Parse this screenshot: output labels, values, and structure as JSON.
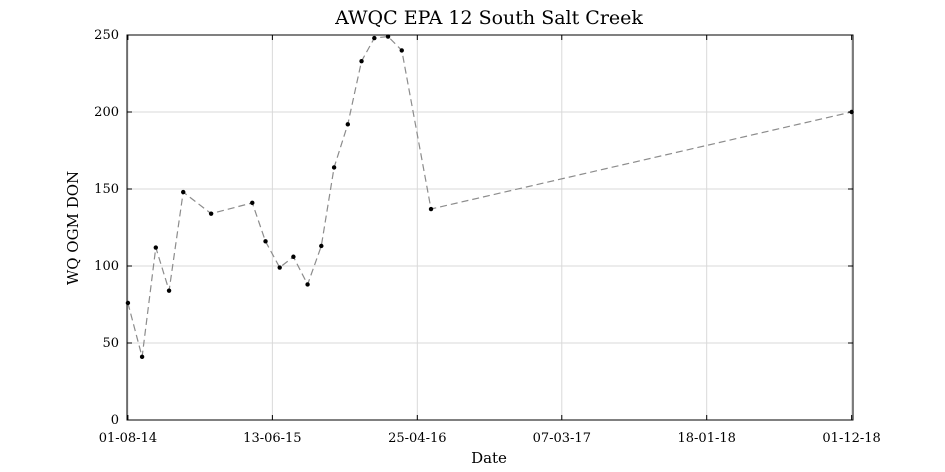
{
  "chart_data": {
    "type": "line",
    "title": "AWQC EPA 12 South Salt Creek",
    "xlabel": "Date",
    "ylabel": "WQ OGM DON",
    "x_axis_type": "date",
    "xlim": [
      "2014-07-30",
      "2018-12-04"
    ],
    "ylim": [
      0,
      250
    ],
    "xticks": [
      {
        "label": "01-08-14",
        "date": "2014-08-01"
      },
      {
        "label": "13-06-15",
        "date": "2015-06-13"
      },
      {
        "label": "25-04-16",
        "date": "2016-04-25"
      },
      {
        "label": "07-03-17",
        "date": "2017-03-07"
      },
      {
        "label": "18-01-18",
        "date": "2018-01-18"
      },
      {
        "label": "01-12-18",
        "date": "2018-12-01"
      }
    ],
    "yticks": [
      0,
      50,
      100,
      150,
      200,
      250
    ],
    "grid": true,
    "line_color": "#8c8c8c",
    "marker_color": "#000000",
    "series": [
      {
        "points": [
          {
            "x": "2014-08-01",
            "y": 76
          },
          {
            "x": "2014-09-01",
            "y": 41
          },
          {
            "x": "2014-10-01",
            "y": 112
          },
          {
            "x": "2014-10-30",
            "y": 84
          },
          {
            "x": "2014-11-30",
            "y": 148
          },
          {
            "x": "2015-01-30",
            "y": 134
          },
          {
            "x": "2015-04-30",
            "y": 141
          },
          {
            "x": "2015-05-29",
            "y": 116
          },
          {
            "x": "2015-06-29",
            "y": 99
          },
          {
            "x": "2015-07-29",
            "y": 106
          },
          {
            "x": "2015-08-29",
            "y": 88
          },
          {
            "x": "2015-09-28",
            "y": 113
          },
          {
            "x": "2015-10-26",
            "y": 164
          },
          {
            "x": "2015-11-25",
            "y": 192
          },
          {
            "x": "2015-12-25",
            "y": 233
          },
          {
            "x": "2016-01-22",
            "y": 248
          },
          {
            "x": "2016-02-21",
            "y": 249
          },
          {
            "x": "2016-03-22",
            "y": 240
          },
          {
            "x": "2016-05-25",
            "y": 137
          },
          {
            "x": "2018-12-01",
            "y": 200
          }
        ]
      }
    ]
  }
}
